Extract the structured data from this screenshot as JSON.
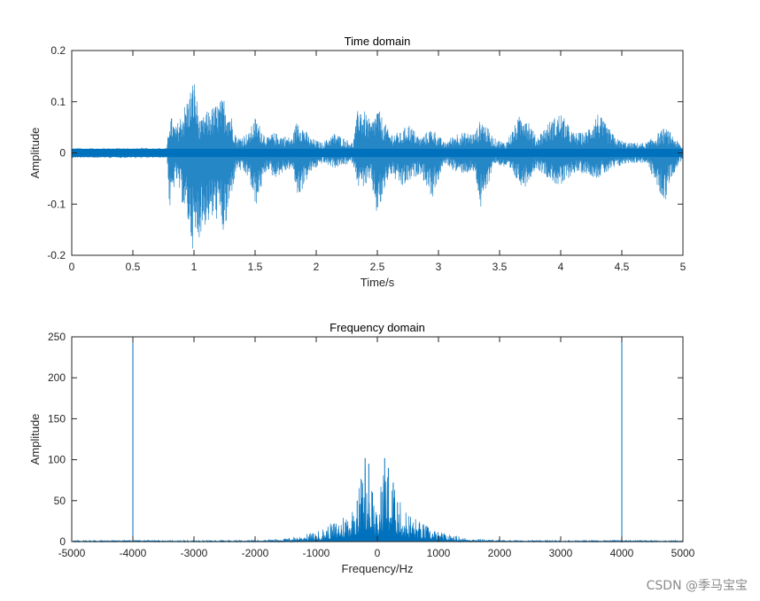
{
  "chart_data": [
    {
      "type": "line",
      "title": "Time domain",
      "xlabel": "Time/s",
      "ylabel": "Amplitude",
      "xlim": [
        0,
        5
      ],
      "ylim": [
        -0.2,
        0.2
      ],
      "xticks": [
        "0",
        "0.5",
        "1",
        "1.5",
        "2",
        "2.5",
        "3",
        "3.5",
        "4",
        "4.5",
        "5"
      ],
      "yticks": [
        "0.2",
        "0.1",
        "0",
        "-0.1",
        "-0.2"
      ],
      "grid": false,
      "color": "#0072BD",
      "envelope": {
        "t": [
          0,
          0.78,
          0.8,
          0.85,
          0.95,
          1.0,
          1.05,
          1.1,
          1.2,
          1.25,
          1.3,
          1.35,
          1.45,
          1.5,
          1.6,
          1.65,
          1.8,
          1.85,
          1.95,
          2.05,
          2.15,
          2.3,
          2.35,
          2.45,
          2.5,
          2.6,
          2.7,
          2.75,
          2.85,
          2.95,
          3.05,
          3.15,
          3.3,
          3.35,
          3.45,
          3.55,
          3.7,
          3.8,
          3.9,
          4.0,
          4.1,
          4.2,
          4.3,
          4.45,
          4.55,
          4.7,
          4.85,
          4.9,
          5.0
        ],
        "max": [
          0.01,
          0.01,
          0.08,
          0.05,
          0.11,
          0.15,
          0.06,
          0.08,
          0.1,
          0.11,
          0.08,
          0.03,
          0.04,
          0.07,
          0.03,
          0.04,
          0.03,
          0.07,
          0.03,
          0.02,
          0.04,
          0.02,
          0.1,
          0.06,
          0.09,
          0.04,
          0.04,
          0.06,
          0.03,
          0.05,
          0.02,
          0.04,
          0.04,
          0.07,
          0.03,
          0.02,
          0.09,
          0.03,
          0.06,
          0.08,
          0.04,
          0.04,
          0.08,
          0.03,
          0.02,
          0.02,
          0.05,
          0.04,
          0.01
        ],
        "min": [
          -0.01,
          -0.01,
          -0.12,
          -0.05,
          -0.14,
          -0.2,
          -0.16,
          -0.14,
          -0.13,
          -0.17,
          -0.09,
          -0.03,
          -0.05,
          -0.11,
          -0.03,
          -0.05,
          -0.03,
          -0.09,
          -0.04,
          -0.02,
          -0.03,
          -0.02,
          -0.07,
          -0.06,
          -0.13,
          -0.04,
          -0.07,
          -0.06,
          -0.04,
          -0.09,
          -0.02,
          -0.04,
          -0.04,
          -0.12,
          -0.02,
          -0.03,
          -0.07,
          -0.03,
          -0.05,
          -0.07,
          -0.04,
          -0.04,
          -0.05,
          -0.03,
          -0.02,
          -0.02,
          -0.1,
          -0.05,
          -0.01
        ]
      }
    },
    {
      "type": "line",
      "title": "Frequency domain",
      "xlabel": "Frequency/Hz",
      "ylabel": "Amplitude",
      "xlim": [
        -5000,
        5000
      ],
      "ylim": [
        0,
        250
      ],
      "xticks": [
        "-5000",
        "-4000",
        "-3000",
        "-2000",
        "-1000",
        "0",
        "1000",
        "2000",
        "3000",
        "4000",
        "5000"
      ],
      "yticks": [
        "250",
        "200",
        "150",
        "100",
        "50",
        "0"
      ],
      "grid": false,
      "color": "#0072BD",
      "spikes": [
        {
          "x": -4000,
          "y": 250
        },
        {
          "x": 4000,
          "y": 250
        }
      ],
      "envelope": {
        "f": [
          -5000,
          -4000,
          -3000,
          -2000,
          -1500,
          -1000,
          -700,
          -400,
          -200,
          -100,
          0,
          100,
          200,
          400,
          700,
          1000,
          1500,
          2000,
          3000,
          4000,
          5000
        ],
        "max": [
          1,
          2,
          1,
          2,
          4,
          12,
          25,
          45,
          102,
          80,
          30,
          102,
          80,
          45,
          25,
          12,
          4,
          2,
          1,
          2,
          1
        ]
      }
    }
  ],
  "watermark": "CSDN @季马宝宝"
}
